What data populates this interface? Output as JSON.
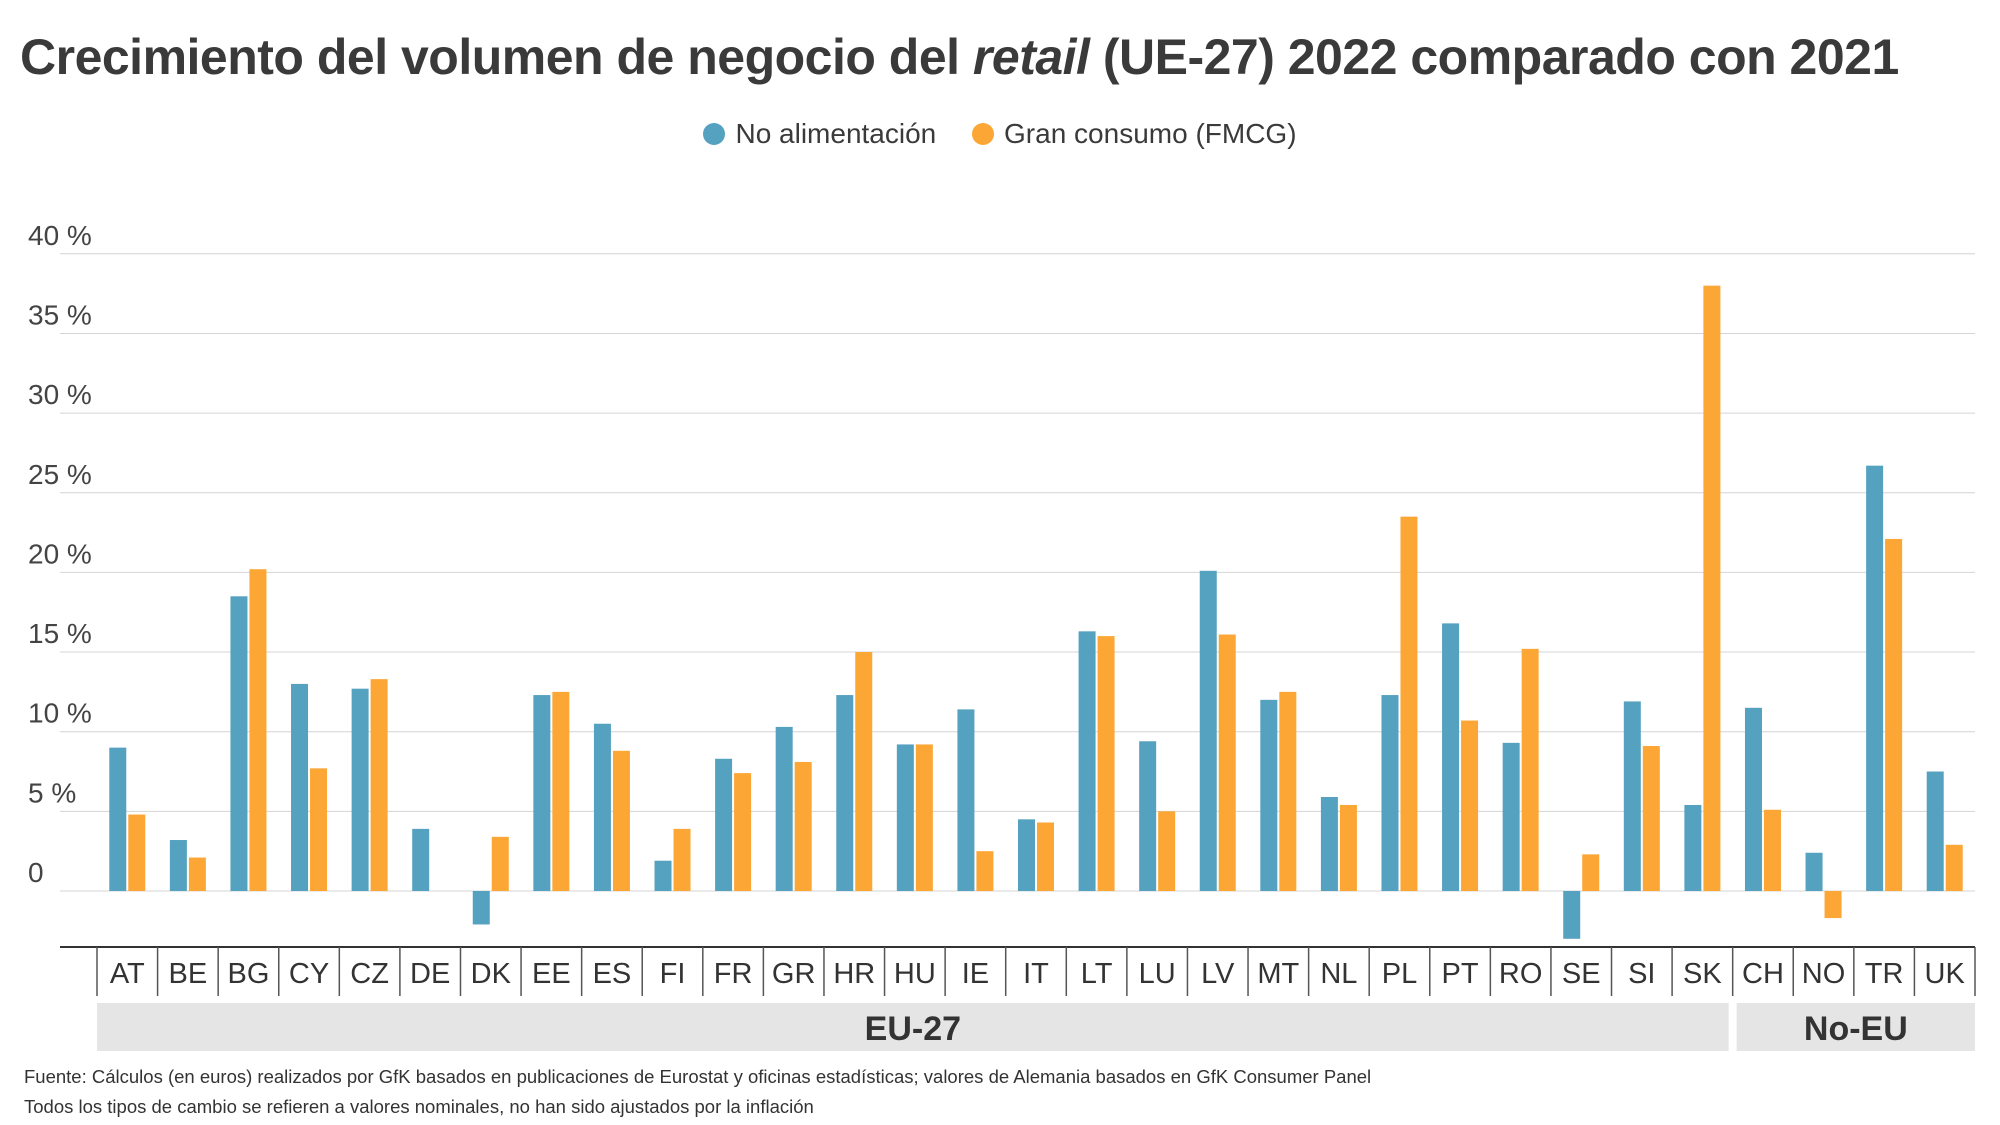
{
  "title": {
    "before": "Crecimiento del volumen de negocio del ",
    "italic": "retail",
    "after": " (UE-27) 2022 comparado con 2021"
  },
  "legend": [
    {
      "label": "No alimentación",
      "color": "#55a1c0"
    },
    {
      "label": "Gran consumo (FMCG)",
      "color": "#fba635"
    }
  ],
  "footnotes": {
    "source": "Fuente: Cálculos (en euros) realizados por GfK basados en publicaciones de Eurostat y oficinas estadísticas; valores de Alemania basados en GfK Consumer Panel",
    "note": "Todos los tipos de cambio se refieren a valores nominales, no han sido ajustados por la inflación"
  },
  "chart_data": {
    "type": "bar",
    "title": "Crecimiento del volumen de negocio del retail (UE-27) 2022 comparado con 2021",
    "categories": [
      "AT",
      "BE",
      "BG",
      "CY",
      "CZ",
      "DE",
      "DK",
      "EE",
      "ES",
      "FI",
      "FR",
      "GR",
      "HR",
      "HU",
      "IE",
      "IT",
      "LT",
      "LU",
      "LV",
      "MT",
      "NL",
      "PL",
      "PT",
      "RO",
      "SE",
      "SI",
      "SK",
      "CH",
      "NO",
      "TR",
      "UK"
    ],
    "series": [
      {
        "name": "No alimentación",
        "color": "#55a1c0",
        "values": [
          9.0,
          3.2,
          18.5,
          13.0,
          12.7,
          3.9,
          -2.1,
          12.3,
          10.5,
          1.9,
          8.3,
          10.3,
          12.3,
          9.2,
          11.4,
          4.5,
          16.3,
          9.4,
          20.1,
          12.0,
          5.9,
          12.3,
          16.8,
          9.3,
          -3.0,
          11.9,
          5.4,
          11.5,
          2.4,
          26.7,
          7.5
        ]
      },
      {
        "name": "Gran consumo (FMCG)",
        "color": "#fba635",
        "values": [
          4.8,
          2.1,
          20.2,
          7.7,
          13.3,
          null,
          3.4,
          12.5,
          8.8,
          3.9,
          7.4,
          8.1,
          15.0,
          9.2,
          2.5,
          4.3,
          16.0,
          5.0,
          16.1,
          12.5,
          5.4,
          23.5,
          10.7,
          15.2,
          2.3,
          9.1,
          38.0,
          5.1,
          -1.7,
          22.1,
          2.9
        ]
      }
    ],
    "groups": [
      {
        "label": "EU-27",
        "categories": 27
      },
      {
        "label": "No-EU",
        "categories": 4
      }
    ],
    "yticks": [
      "0",
      "5 %",
      "10 %",
      "15 %",
      "20 %",
      "25 %",
      "30 %",
      "35 %",
      "40 %"
    ],
    "ylim": [
      -4,
      40
    ],
    "ytick_values": [
      0,
      5,
      10,
      15,
      20,
      25,
      30,
      35,
      40
    ],
    "grid": true,
    "legend_position": "top-center",
    "group_band_color": "#e5e5e5"
  }
}
